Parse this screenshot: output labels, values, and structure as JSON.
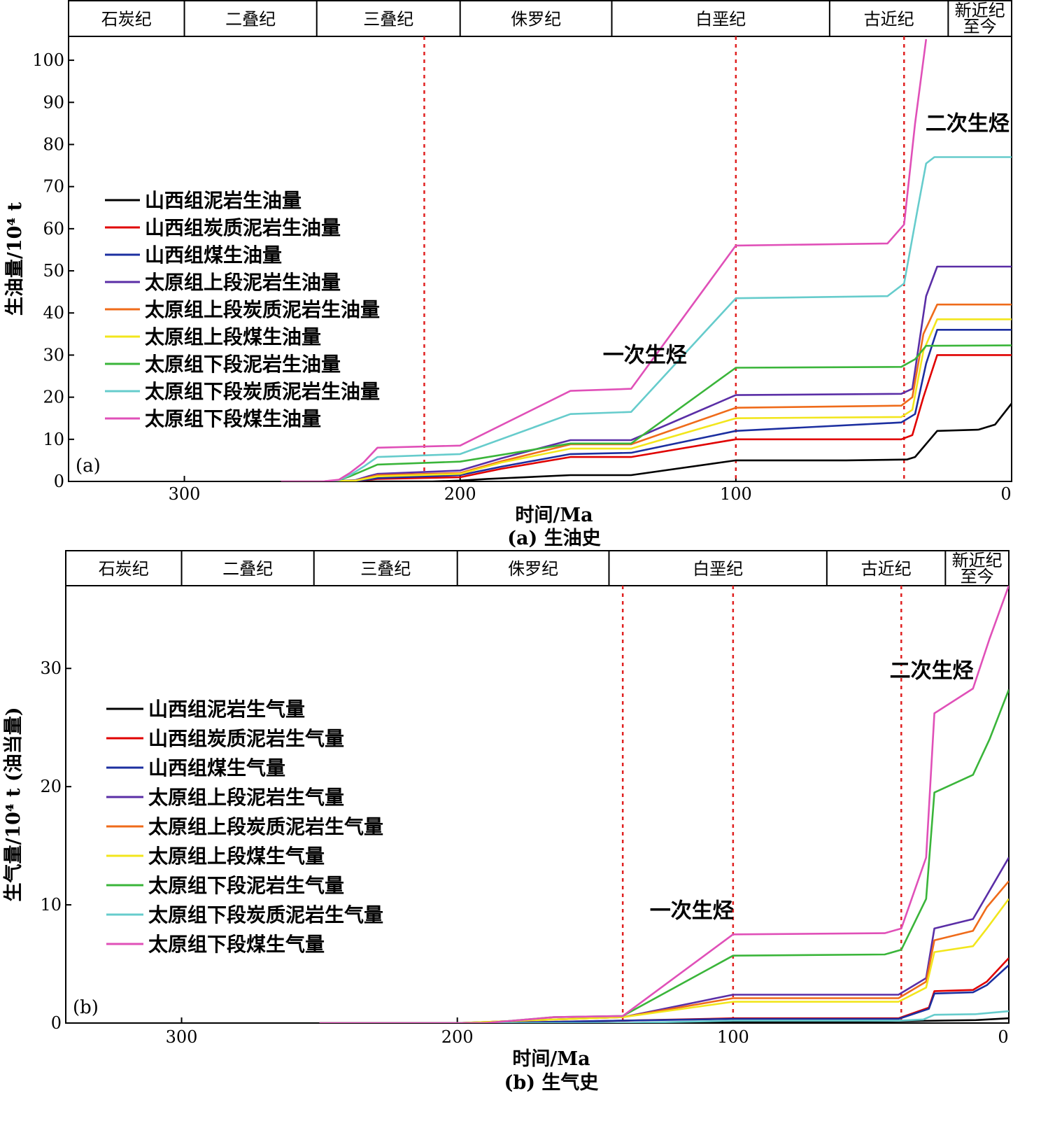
{
  "chart_data": [
    {
      "type": "line",
      "panel_label": "(a)",
      "caption": "(a) 生油史",
      "xlabel": "时间/Ma",
      "ylabel": "生油量/10⁴ t",
      "xlim": [
        342,
        0
      ],
      "ylim": [
        0,
        105
      ],
      "xticks": [
        300,
        200,
        100,
        0
      ],
      "yticks": [
        0,
        10,
        20,
        30,
        40,
        50,
        60,
        70,
        80,
        90,
        100
      ],
      "periods": [
        {
          "name": "石炭纪",
          "start": 342,
          "end": 300
        },
        {
          "name": "二叠纪",
          "start": 300,
          "end": 252
        },
        {
          "name": "三叠纪",
          "start": 252,
          "end": 200
        },
        {
          "name": "侏罗纪",
          "start": 200,
          "end": 145
        },
        {
          "name": "白垩纪",
          "start": 145,
          "end": 66
        },
        {
          "name": "古近纪",
          "start": 66,
          "end": 23
        },
        {
          "name": "新近纪至今",
          "start": 23,
          "end": 0
        }
      ],
      "dashed_lines_x": [
        213,
        100,
        39
      ],
      "annotations": [
        {
          "text": "一次生烃",
          "x": 133,
          "y": 30
        },
        {
          "text": "二次生烃",
          "x": 16,
          "y": 85
        }
      ],
      "legend_position": "left",
      "series": [
        {
          "name": "山西组泥岩生油量",
          "color": "#000000",
          "points": [
            [
              265,
              0
            ],
            [
              250,
              0
            ],
            [
              235,
              0
            ],
            [
              210,
              0
            ],
            [
              200,
              0.2
            ],
            [
              190,
              0.6
            ],
            [
              160,
              1.5
            ],
            [
              138,
              1.5
            ],
            [
              100,
              5
            ],
            [
              60,
              5
            ],
            [
              38,
              5.2
            ],
            [
              35,
              5.8
            ],
            [
              27,
              12
            ],
            [
              12,
              12.3
            ],
            [
              6,
              13.5
            ],
            [
              0,
              18.5
            ]
          ]
        },
        {
          "name": "山西组炭质泥岩生油量",
          "color": "#e00000",
          "points": [
            [
              265,
              0
            ],
            [
              250,
              0
            ],
            [
              238,
              0.1
            ],
            [
              233,
              0.4
            ],
            [
              230,
              0.6
            ],
            [
              200,
              1
            ],
            [
              185,
              3
            ],
            [
              160,
              5.8
            ],
            [
              138,
              5.8
            ],
            [
              100,
              10
            ],
            [
              40,
              10
            ],
            [
              36,
              11
            ],
            [
              32,
              20
            ],
            [
              27,
              30
            ],
            [
              0,
              30
            ]
          ]
        },
        {
          "name": "山西组煤生油量",
          "color": "#1c2fa0",
          "points": [
            [
              265,
              0
            ],
            [
              250,
              0
            ],
            [
              238,
              0.1
            ],
            [
              233,
              0.5
            ],
            [
              230,
              0.8
            ],
            [
              200,
              1.5
            ],
            [
              185,
              3.5
            ],
            [
              160,
              6.5
            ],
            [
              138,
              6.8
            ],
            [
              100,
              12
            ],
            [
              40,
              14
            ],
            [
              35,
              16
            ],
            [
              31,
              28
            ],
            [
              27,
              36
            ],
            [
              0,
              36
            ]
          ]
        },
        {
          "name": "太原组上段泥岩生油量",
          "color": "#5a2ea6",
          "points": [
            [
              265,
              0
            ],
            [
              250,
              0
            ],
            [
              238,
              0.3
            ],
            [
              233,
              1.3
            ],
            [
              230,
              1.8
            ],
            [
              200,
              2.6
            ],
            [
              185,
              5.5
            ],
            [
              160,
              9.8
            ],
            [
              138,
              9.8
            ],
            [
              100,
              20.5
            ],
            [
              40,
              20.8
            ],
            [
              36,
              22
            ],
            [
              31,
              44
            ],
            [
              27,
              51
            ],
            [
              0,
              51
            ]
          ]
        },
        {
          "name": "太原组上段炭质泥岩生油量",
          "color": "#ef6b1a",
          "points": [
            [
              265,
              0
            ],
            [
              250,
              0
            ],
            [
              238,
              0.2
            ],
            [
              233,
              1
            ],
            [
              230,
              1.5
            ],
            [
              200,
              2
            ],
            [
              185,
              4.8
            ],
            [
              160,
              8.8
            ],
            [
              138,
              8.8
            ],
            [
              100,
              17.5
            ],
            [
              40,
              18
            ],
            [
              36,
              20
            ],
            [
              32,
              35
            ],
            [
              27,
              42
            ],
            [
              0,
              42
            ]
          ]
        },
        {
          "name": "太原组上段煤生油量",
          "color": "#f2e61c",
          "points": [
            [
              265,
              0
            ],
            [
              250,
              0
            ],
            [
              238,
              0.2
            ],
            [
              233,
              0.8
            ],
            [
              230,
              1.2
            ],
            [
              200,
              1.8
            ],
            [
              185,
              4.5
            ],
            [
              160,
              7.8
            ],
            [
              138,
              7.8
            ],
            [
              100,
              15
            ],
            [
              40,
              15.3
            ],
            [
              36,
              17
            ],
            [
              32,
              31
            ],
            [
              27,
              38.5
            ],
            [
              0,
              38.5
            ]
          ]
        },
        {
          "name": "太原组下段泥岩生油量",
          "color": "#3ab53a",
          "points": [
            [
              265,
              0
            ],
            [
              250,
              0
            ],
            [
              244,
              0.3
            ],
            [
              240,
              1.2
            ],
            [
              235,
              2.6
            ],
            [
              230,
              4
            ],
            [
              200,
              4.7
            ],
            [
              160,
              9
            ],
            [
              138,
              9
            ],
            [
              100,
              27
            ],
            [
              40,
              27.2
            ],
            [
              35,
              29
            ],
            [
              31,
              32.2
            ],
            [
              0,
              32.3
            ]
          ]
        },
        {
          "name": "太原组下段炭质泥岩生油量",
          "color": "#66cccc",
          "points": [
            [
              265,
              0
            ],
            [
              250,
              0
            ],
            [
              244,
              0.3
            ],
            [
              240,
              1.5
            ],
            [
              235,
              3.5
            ],
            [
              230,
              5.8
            ],
            [
              200,
              6.5
            ],
            [
              160,
              16
            ],
            [
              138,
              16.5
            ],
            [
              100,
              43.5
            ],
            [
              45,
              44
            ],
            [
              39,
              47
            ],
            [
              34,
              65
            ],
            [
              31,
              75.5
            ],
            [
              28,
              77
            ],
            [
              0,
              77
            ]
          ]
        },
        {
          "name": "太原组下段煤生油量",
          "color": "#e050b8",
          "points": [
            [
              265,
              0
            ],
            [
              250,
              0
            ],
            [
              244,
              0.4
            ],
            [
              240,
              2
            ],
            [
              235,
              4.5
            ],
            [
              230,
              8
            ],
            [
              200,
              8.5
            ],
            [
              160,
              21.5
            ],
            [
              138,
              22
            ],
            [
              100,
              56
            ],
            [
              45,
              56.5
            ],
            [
              39,
              61
            ],
            [
              35,
              85
            ],
            [
              33,
              95
            ],
            [
              31,
              105
            ]
          ]
        }
      ]
    },
    {
      "type": "line",
      "panel_label": "(b)",
      "caption": "(b) 生气史",
      "xlabel": "时间/Ma",
      "ylabel": "生气量/10⁴ t (油当量)",
      "xlim": [
        342,
        0
      ],
      "ylim": [
        0,
        37
      ],
      "xticks": [
        300,
        200,
        100,
        0
      ],
      "yticks": [
        0,
        10,
        20,
        30
      ],
      "periods": [
        {
          "name": "石炭纪",
          "start": 342,
          "end": 300
        },
        {
          "name": "二叠纪",
          "start": 300,
          "end": 252
        },
        {
          "name": "三叠纪",
          "start": 252,
          "end": 200
        },
        {
          "name": "侏罗纪",
          "start": 200,
          "end": 145
        },
        {
          "name": "白垩纪",
          "start": 145,
          "end": 66
        },
        {
          "name": "古近纪",
          "start": 66,
          "end": 23
        },
        {
          "name": "新近纪至今",
          "start": 23,
          "end": 0
        }
      ],
      "dashed_lines_x": [
        140,
        100,
        39
      ],
      "annotations": [
        {
          "text": "一次生烃",
          "x": 115,
          "y": 9.5
        },
        {
          "text": "二次生烃",
          "x": 28,
          "y": 29.8
        }
      ],
      "legend_position": "left",
      "series": [
        {
          "name": "山西组泥岩生气量",
          "color": "#000000",
          "points": [
            [
              250,
              0
            ],
            [
              140,
              0
            ],
            [
              100,
              0.1
            ],
            [
              40,
              0.15
            ],
            [
              25,
              0.2
            ],
            [
              12,
              0.25
            ],
            [
              0,
              0.4
            ]
          ]
        },
        {
          "name": "山西组炭质泥岩生气量",
          "color": "#e00000",
          "points": [
            [
              250,
              0
            ],
            [
              190,
              0
            ],
            [
              140,
              0.2
            ],
            [
              100,
              0.4
            ],
            [
              40,
              0.4
            ],
            [
              29,
              1.3
            ],
            [
              27,
              2.7
            ],
            [
              13,
              2.8
            ],
            [
              8,
              3.5
            ],
            [
              0,
              5.5
            ]
          ]
        },
        {
          "name": "山西组煤生气量",
          "color": "#1c2fa0",
          "points": [
            [
              250,
              0
            ],
            [
              190,
              0
            ],
            [
              140,
              0.2
            ],
            [
              100,
              0.35
            ],
            [
              40,
              0.35
            ],
            [
              29,
              1.2
            ],
            [
              27,
              2.5
            ],
            [
              13,
              2.6
            ],
            [
              8,
              3.2
            ],
            [
              0,
              4.9
            ]
          ]
        },
        {
          "name": "太原组上段泥岩生气量",
          "color": "#5a2ea6",
          "points": [
            [
              250,
              0
            ],
            [
              200,
              0
            ],
            [
              165,
              0.3
            ],
            [
              140,
              0.5
            ],
            [
              100,
              2.4
            ],
            [
              40,
              2.4
            ],
            [
              30,
              3.8
            ],
            [
              27,
              8
            ],
            [
              13,
              8.8
            ],
            [
              8,
              10.8
            ],
            [
              0,
              14
            ]
          ]
        },
        {
          "name": "太原组上段炭质泥岩生气量",
          "color": "#ef6b1a",
          "points": [
            [
              250,
              0
            ],
            [
              200,
              0
            ],
            [
              165,
              0.3
            ],
            [
              140,
              0.5
            ],
            [
              100,
              2.1
            ],
            [
              40,
              2.1
            ],
            [
              30,
              3.5
            ],
            [
              27,
              7
            ],
            [
              13,
              7.8
            ],
            [
              8,
              9.8
            ],
            [
              0,
              12
            ]
          ]
        },
        {
          "name": "太原组上段煤生气量",
          "color": "#f2e61c",
          "points": [
            [
              250,
              0
            ],
            [
              200,
              0
            ],
            [
              165,
              0.3
            ],
            [
              140,
              0.5
            ],
            [
              100,
              1.8
            ],
            [
              40,
              1.8
            ],
            [
              30,
              3
            ],
            [
              27,
              6
            ],
            [
              13,
              6.5
            ],
            [
              8,
              8
            ],
            [
              0,
              10.5
            ]
          ]
        },
        {
          "name": "太原组下段泥岩生气量",
          "color": "#3ab53a",
          "points": [
            [
              250,
              0
            ],
            [
              190,
              0
            ],
            [
              165,
              0.5
            ],
            [
              140,
              0.6
            ],
            [
              100,
              5.7
            ],
            [
              45,
              5.8
            ],
            [
              39,
              6.2
            ],
            [
              30,
              10.5
            ],
            [
              27,
              19.5
            ],
            [
              13,
              21
            ],
            [
              7,
              24
            ],
            [
              0,
              28.2
            ]
          ]
        },
        {
          "name": "太原组下段炭质泥岩生气量",
          "color": "#66cccc",
          "points": [
            [
              250,
              0
            ],
            [
              140,
              0
            ],
            [
              100,
              0.2
            ],
            [
              40,
              0.2
            ],
            [
              31,
              0.3
            ],
            [
              27,
              0.7
            ],
            [
              12,
              0.75
            ],
            [
              0,
              1
            ]
          ]
        },
        {
          "name": "太原组下段煤生气量",
          "color": "#e050b8",
          "points": [
            [
              250,
              0
            ],
            [
              190,
              0
            ],
            [
              165,
              0.5
            ],
            [
              140,
              0.6
            ],
            [
              100,
              7.5
            ],
            [
              45,
              7.6
            ],
            [
              39,
              8
            ],
            [
              30,
              14
            ],
            [
              27,
              26.2
            ],
            [
              13,
              28.3
            ],
            [
              7,
              32.5
            ],
            [
              0,
              37
            ]
          ]
        }
      ]
    }
  ]
}
